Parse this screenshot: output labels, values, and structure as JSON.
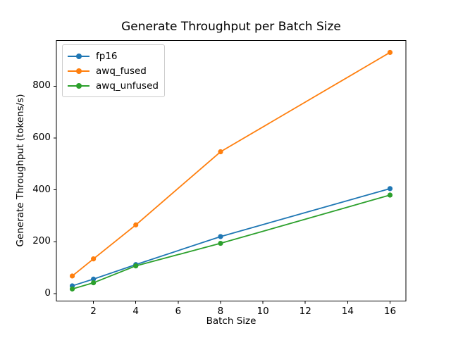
{
  "figure": {
    "background": "#ffffff",
    "axis_color": "#000000"
  },
  "chart_data": {
    "type": "line",
    "title": "Generate Throughput per Batch Size",
    "xlabel": "Batch Size",
    "ylabel": "Generate Throughput (tokens/s)",
    "x": [
      1,
      2,
      4,
      8,
      16
    ],
    "series": [
      {
        "name": "fp16",
        "color": "#1f77b4",
        "values": [
          30,
          56,
          112,
          220,
          405
        ]
      },
      {
        "name": "awq_fused",
        "color": "#ff7f0e",
        "values": [
          68,
          134,
          265,
          547,
          930
        ]
      },
      {
        "name": "awq_unfused",
        "color": "#2ca02c",
        "values": [
          18,
          42,
          107,
          194,
          380
        ]
      }
    ],
    "xticks": [
      2,
      4,
      6,
      8,
      10,
      12,
      14,
      16
    ],
    "yticks": [
      0,
      200,
      400,
      600,
      800
    ],
    "xlim": [
      0.25,
      16.75
    ],
    "ylim": [
      -28.5,
      976
    ],
    "grid": false,
    "legend_position": "upper left",
    "marker": "circle",
    "line_width": 1.8,
    "marker_radius": 3.6
  }
}
